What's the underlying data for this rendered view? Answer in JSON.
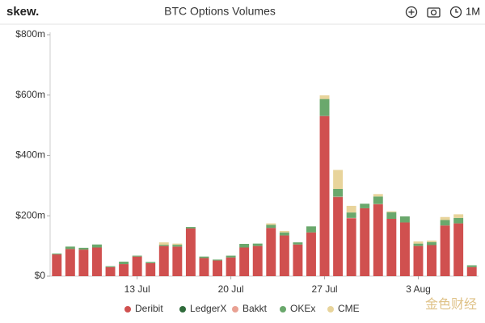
{
  "chart_data": {
    "type": "stacked_bar",
    "logo": "skew.",
    "title": "BTC Options Volumes",
    "range_button": "1M",
    "watermark": "金色财经",
    "categories": [
      null,
      null,
      null,
      null,
      null,
      null,
      "13 Jul",
      null,
      null,
      null,
      null,
      null,
      null,
      "20 Jul",
      null,
      null,
      null,
      null,
      null,
      null,
      "27 Jul",
      null,
      null,
      null,
      null,
      null,
      null,
      "3 Aug",
      null,
      null,
      null,
      null
    ],
    "series": [
      {
        "name": "Deribit",
        "color": "#d0504f",
        "values": [
          72,
          90,
          88,
          95,
          30,
          40,
          65,
          43,
          100,
          98,
          158,
          60,
          52,
          62,
          95,
          100,
          160,
          135,
          105,
          145,
          530,
          262,
          192,
          225,
          238,
          190,
          178,
          100,
          103,
          168,
          175,
          30
        ]
      },
      {
        "name": "LedgerX",
        "color": "#2f6b3b",
        "values": [
          0,
          0,
          0,
          0,
          0,
          0,
          0,
          0,
          0,
          0,
          0,
          0,
          0,
          0,
          0,
          0,
          0,
          0,
          0,
          0,
          1,
          1,
          0,
          0,
          0,
          0,
          0,
          0,
          0,
          0,
          0,
          0
        ]
      },
      {
        "name": "Bakkt",
        "color": "#e9a193",
        "values": [
          0,
          0,
          0,
          0,
          0,
          0,
          0,
          0,
          0,
          0,
          0,
          0,
          0,
          0,
          0,
          0,
          0,
          0,
          0,
          0,
          1,
          1,
          1,
          0,
          1,
          0,
          0,
          0,
          0,
          0,
          0,
          0
        ]
      },
      {
        "name": "OKEx",
        "color": "#6aa86c",
        "values": [
          3,
          8,
          6,
          10,
          3,
          8,
          3,
          4,
          4,
          6,
          5,
          5,
          3,
          6,
          12,
          8,
          10,
          10,
          7,
          20,
          55,
          25,
          18,
          15,
          25,
          22,
          20,
          8,
          10,
          18,
          18,
          6
        ]
      },
      {
        "name": "CME",
        "color": "#e8d49b",
        "values": [
          0,
          0,
          0,
          0,
          0,
          0,
          0,
          0,
          8,
          4,
          0,
          0,
          0,
          0,
          0,
          0,
          5,
          5,
          0,
          0,
          12,
          63,
          22,
          0,
          8,
          3,
          0,
          7,
          5,
          10,
          12,
          0
        ]
      }
    ],
    "ylim": [
      0,
      800
    ],
    "yticks": [
      {
        "value": 0,
        "label": "$0"
      },
      {
        "value": 200,
        "label": "$200m"
      },
      {
        "value": 400,
        "label": "$400m"
      },
      {
        "value": 600,
        "label": "$600m"
      },
      {
        "value": 800,
        "label": "$800m"
      }
    ],
    "grid": false,
    "legend": "bottom"
  }
}
